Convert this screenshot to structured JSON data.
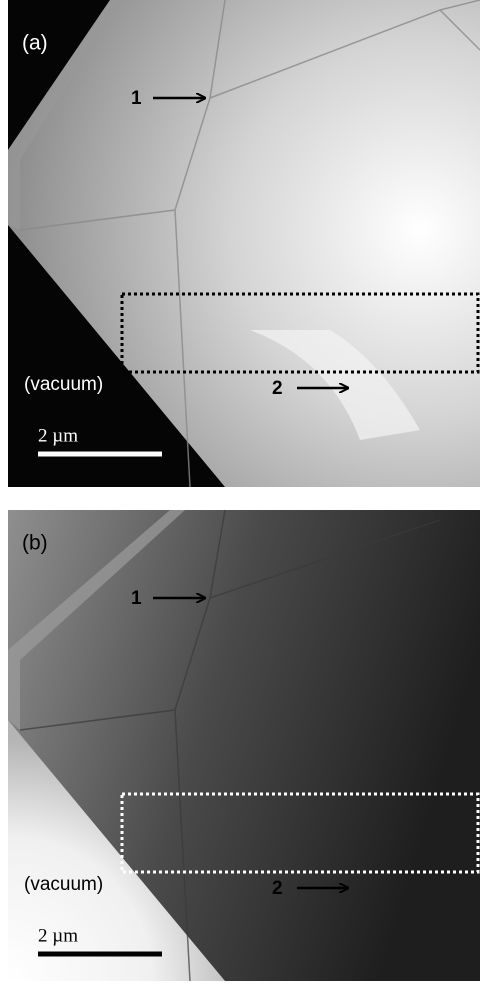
{
  "panels": [
    {
      "label": "(a)",
      "arrow_labels": [
        "1",
        "2"
      ],
      "region_label": "(vacuum)",
      "scale_bar": "2 µm"
    },
    {
      "label": "(b)",
      "arrow_labels": [
        "1",
        "2"
      ],
      "region_label": "(vacuum)",
      "scale_bar": "2 µm"
    }
  ]
}
